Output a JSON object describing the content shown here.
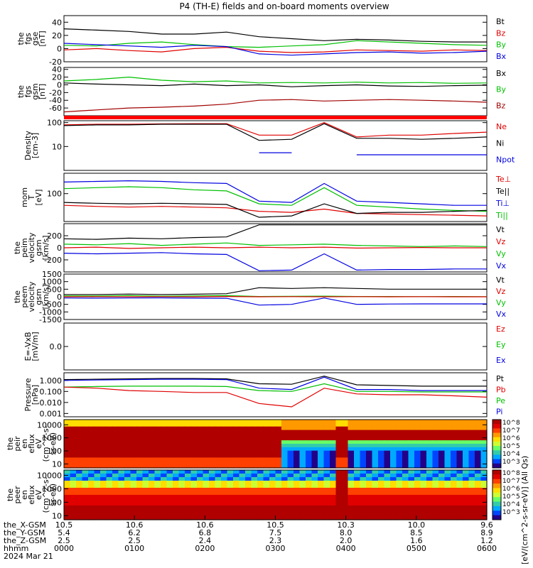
{
  "title": "P4 (TH-E) fields and on-board moments overview",
  "colors": {
    "black": "#000000",
    "red": "#e00000",
    "green": "#00c000",
    "blue": "#0000e0",
    "darkred": "#a00000"
  },
  "chart_data": [
    {
      "type": "line",
      "panel": "fgs_gse",
      "ylabel": [
        "the",
        "fgs",
        "gse",
        "[nT]"
      ],
      "ylim": [
        -20,
        50
      ],
      "yticks": [
        "40",
        "20",
        "0",
        "-20"
      ],
      "legend": [
        {
          "name": "Bt",
          "color": "black"
        },
        {
          "name": "Bz",
          "color": "red"
        },
        {
          "name": "By",
          "color": "green"
        },
        {
          "name": "Bx",
          "color": "blue"
        }
      ],
      "series": [
        {
          "name": "Bt",
          "values": [
            30,
            28,
            26,
            22,
            22,
            25,
            18,
            15,
            12,
            14,
            13,
            11,
            10,
            10
          ]
        },
        {
          "name": "By",
          "values": [
            5,
            4,
            8,
            10,
            6,
            3,
            2,
            4,
            6,
            12,
            10,
            8,
            6,
            5
          ]
        },
        {
          "name": "Bz",
          "values": [
            -2,
            0,
            -3,
            -5,
            0,
            2,
            -4,
            -6,
            -5,
            -2,
            -3,
            -4,
            -2,
            -3
          ]
        },
        {
          "name": "Bx",
          "values": [
            8,
            6,
            4,
            2,
            5,
            3,
            -8,
            -10,
            -8,
            -6,
            -5,
            -7,
            -6,
            -4
          ]
        }
      ]
    },
    {
      "type": "line",
      "panel": "fgs_gsm",
      "ylabel": [
        "the",
        "fgs",
        "gsm",
        "[nT]"
      ],
      "ylim": [
        -80,
        45
      ],
      "yticks": [
        "40",
        "20",
        "0",
        "-20",
        "-40",
        "-60"
      ],
      "legend": [
        {
          "name": "Bx",
          "color": "black"
        },
        {
          "name": "By",
          "color": "green"
        },
        {
          "name": "Bz",
          "color": "darkred"
        }
      ],
      "series": [
        {
          "name": "Bx",
          "values": [
            5,
            2,
            0,
            -2,
            2,
            -2,
            0,
            -5,
            -2,
            0,
            -3,
            -4,
            -2,
            -1
          ]
        },
        {
          "name": "By",
          "values": [
            10,
            14,
            20,
            12,
            8,
            10,
            5,
            6,
            5,
            7,
            5,
            6,
            4,
            5
          ]
        },
        {
          "name": "Bz",
          "values": [
            -70,
            -65,
            -60,
            -58,
            -55,
            -50,
            -40,
            -38,
            -42,
            -40,
            -38,
            -40,
            -42,
            -45
          ]
        }
      ]
    },
    {
      "type": "line",
      "panel": "density",
      "ylabel": [
        "Density",
        "[cm-3]"
      ],
      "ylog": true,
      "ylim": [
        1,
        120
      ],
      "yticks": [
        "100",
        "10"
      ],
      "legend": [
        {
          "name": "Ne",
          "color": "red"
        },
        {
          "name": "Ni",
          "color": "black"
        },
        {
          "name": "Npot",
          "color": "blue"
        }
      ],
      "series": [
        {
          "name": "Ne",
          "values": [
            80,
            85,
            85,
            88,
            90,
            90,
            30,
            30,
            100,
            25,
            30,
            30,
            35,
            40
          ]
        },
        {
          "name": "Ni",
          "values": [
            75,
            80,
            80,
            85,
            85,
            85,
            18,
            20,
            90,
            22,
            22,
            20,
            22,
            25
          ]
        },
        {
          "name": "Npot",
          "values": [
            null,
            null,
            null,
            null,
            null,
            null,
            5.5,
            5.5,
            null,
            4.5,
            4.5,
            4.5,
            4.5,
            4.5
          ]
        }
      ]
    },
    {
      "type": "line",
      "panel": "moments_temp",
      "ylabel": [
        "mom",
        "T",
        "[eV]"
      ],
      "ylog": true,
      "ylim": [
        15,
        400
      ],
      "yticks": [
        "100"
      ],
      "legend": [
        {
          "name": "Te⊥",
          "color": "red"
        },
        {
          "name": "Te||",
          "color": "black"
        },
        {
          "name": "Ti⊥",
          "color": "blue"
        },
        {
          "name": "Ti||",
          "color": "green"
        }
      ],
      "series": [
        {
          "name": "Ti⊥",
          "values": [
            220,
            230,
            240,
            230,
            210,
            200,
            60,
            55,
            200,
            60,
            55,
            50,
            45,
            45
          ]
        },
        {
          "name": "Ti||",
          "values": [
            140,
            150,
            160,
            150,
            130,
            120,
            50,
            45,
            150,
            45,
            40,
            35,
            32,
            30
          ]
        },
        {
          "name": "Te⊥",
          "values": [
            45,
            42,
            40,
            42,
            40,
            38,
            30,
            28,
            35,
            26,
            25,
            24,
            23,
            22
          ]
        },
        {
          "name": "Te||",
          "values": [
            55,
            52,
            50,
            52,
            50,
            48,
            20,
            22,
            50,
            26,
            28,
            28,
            30,
            32
          ]
        }
      ]
    },
    {
      "type": "line",
      "panel": "peim_velocity",
      "ylabel": [
        "the",
        "peim",
        "velocity",
        "gsm",
        "[km/s]"
      ],
      "ylim": [
        -400,
        400
      ],
      "yticks": [
        "200",
        "0",
        "-200"
      ],
      "legend": [
        {
          "name": "Vt",
          "color": "black"
        },
        {
          "name": "Vz",
          "color": "red"
        },
        {
          "name": "Vy",
          "color": "green"
        },
        {
          "name": "Vx",
          "color": "blue"
        }
      ],
      "series": [
        {
          "name": "Vt",
          "values": [
            150,
            140,
            160,
            150,
            170,
            180,
            380,
            380,
            380,
            380,
            380,
            380,
            380,
            380
          ]
        },
        {
          "name": "Vy",
          "values": [
            60,
            50,
            70,
            40,
            60,
            80,
            40,
            50,
            60,
            40,
            30,
            20,
            30,
            20
          ]
        },
        {
          "name": "Vz",
          "values": [
            0,
            10,
            -10,
            0,
            10,
            0,
            10,
            0,
            10,
            -5,
            0,
            5,
            0,
            0
          ]
        },
        {
          "name": "Vx",
          "values": [
            -90,
            -100,
            -90,
            -80,
            -100,
            -110,
            -380,
            -370,
            -100,
            -370,
            -360,
            -360,
            -350,
            -350
          ]
        }
      ]
    },
    {
      "type": "line",
      "panel": "peem_velocity",
      "ylabel": [
        "the",
        "peem",
        "velocity",
        "gsm",
        "[km/s]"
      ],
      "ylim": [
        -1500,
        1500
      ],
      "yticks": [
        "1500",
        "1000",
        "500",
        "0",
        "-500",
        "-1000",
        "-1500"
      ],
      "legend": [
        {
          "name": "Vt",
          "color": "black"
        },
        {
          "name": "Vz",
          "color": "red"
        },
        {
          "name": "Vy",
          "color": "green"
        },
        {
          "name": "Vx",
          "color": "blue"
        }
      ],
      "series": [
        {
          "name": "Vt",
          "values": [
            150,
            150,
            180,
            150,
            170,
            200,
            600,
            550,
            600,
            550,
            500,
            500,
            500,
            500
          ]
        },
        {
          "name": "Vy",
          "values": [
            60,
            50,
            80,
            40,
            60,
            80,
            20,
            30,
            40,
            20,
            20,
            10,
            20,
            10
          ]
        },
        {
          "name": "Vz",
          "values": [
            0,
            10,
            0,
            10,
            0,
            20,
            0,
            10,
            0,
            10,
            0,
            10,
            0,
            0
          ]
        },
        {
          "name": "Vx",
          "values": [
            -80,
            -90,
            -80,
            -70,
            -90,
            -100,
            -550,
            -500,
            -80,
            -500,
            -480,
            -470,
            -470,
            -470
          ]
        }
      ]
    },
    {
      "type": "line",
      "panel": "efield",
      "ylabel": [
        "E=-VxB",
        "[mV/m]"
      ],
      "ylim": [
        -1,
        1
      ],
      "yticks": [
        "0.0"
      ],
      "legend": [
        {
          "name": "Ez",
          "color": "red"
        },
        {
          "name": "Ey",
          "color": "green"
        },
        {
          "name": "Ex",
          "color": "blue"
        }
      ],
      "series": []
    },
    {
      "type": "line",
      "panel": "pressure",
      "ylabel": [
        "Pressure",
        "[nPa]"
      ],
      "ylog": true,
      "ylim": [
        0.0005,
        5
      ],
      "yticks": [
        "1.000",
        "0.100",
        "0.010",
        "0.001"
      ],
      "legend": [
        {
          "name": "Pt",
          "color": "black"
        },
        {
          "name": "Pb",
          "color": "red"
        },
        {
          "name": "Pe",
          "color": "green"
        },
        {
          "name": "Pi",
          "color": "blue"
        }
      ],
      "series": [
        {
          "name": "Pt",
          "values": [
            1.2,
            1.3,
            1.4,
            1.5,
            1.5,
            1.4,
            0.5,
            0.45,
            2.5,
            0.4,
            0.35,
            0.3,
            0.3,
            0.3
          ]
        },
        {
          "name": "Pi",
          "values": [
            1.0,
            1.1,
            1.2,
            1.3,
            1.3,
            1.2,
            0.2,
            0.15,
            2.0,
            0.15,
            0.15,
            0.12,
            0.12,
            0.12
          ]
        },
        {
          "name": "Pe",
          "values": [
            0.25,
            0.28,
            0.3,
            0.3,
            0.3,
            0.28,
            0.12,
            0.1,
            0.5,
            0.1,
            0.1,
            0.09,
            0.09,
            0.09
          ]
        },
        {
          "name": "Pb",
          "values": [
            0.25,
            0.2,
            0.12,
            0.1,
            0.08,
            0.08,
            0.008,
            0.004,
            0.2,
            0.06,
            0.05,
            0.05,
            0.04,
            0.03
          ]
        }
      ]
    },
    {
      "type": "heatmap",
      "panel": "peir_eflux",
      "ylabel": [
        "the",
        "peir",
        "en",
        "eflux",
        "eV",
        "(cm^2-s-",
        "sr-eV)"
      ],
      "ylog": true,
      "ylim": [
        5,
        25000
      ],
      "yticks": [
        "10000",
        "1000",
        "100",
        "10"
      ]
    },
    {
      "type": "heatmap",
      "panel": "peer_eflux",
      "ylabel": [
        "the",
        "peer",
        "en",
        "eflux",
        "eV",
        "(cm^2-s-",
        "sr-eV)"
      ],
      "ylog": true,
      "ylim": [
        5,
        25000
      ],
      "yticks": [
        "10000",
        "1000",
        "100",
        "10"
      ]
    }
  ],
  "colorbar": {
    "label": "[eV/(cm^2-s-sr-eV)] (All Qs)",
    "ticks": [
      "10^8",
      "10^7",
      "10^6",
      "10^5",
      "10^4",
      "10^3",
      "10^8",
      "10^7",
      "10^6",
      "10^5",
      "10^4",
      "10^3"
    ]
  },
  "xaxis": {
    "rows": [
      {
        "label": "the_X-GSM",
        "values": [
          "10.5",
          "10.6",
          "10.6",
          "10.5",
          "10.3",
          "10.0",
          "9.6"
        ]
      },
      {
        "label": "the_Y-GSM",
        "values": [
          "5.4",
          "6.2",
          "6.8",
          "7.5",
          "8.0",
          "8.5",
          "8.9"
        ]
      },
      {
        "label": "the_Z-GSM",
        "values": [
          "2.5",
          "2.5",
          "2.4",
          "2.3",
          "2.0",
          "1.6",
          "1.2"
        ]
      },
      {
        "label": "hhmm",
        "values": [
          "0000",
          "0100",
          "0200",
          "0300",
          "0400",
          "0500",
          "0600"
        ]
      }
    ],
    "date": "2024 Mar 21"
  }
}
